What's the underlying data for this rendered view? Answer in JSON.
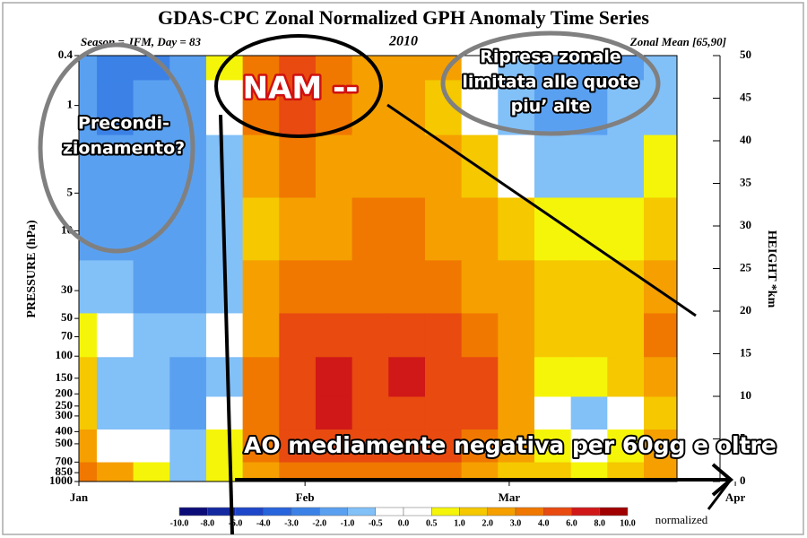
{
  "chart_data": {
    "type": "contour",
    "title": "GDAS-CPC Zonal Normalized GPH Anomaly Time Series",
    "subtitle_left": "Season = JFM, Day =  83",
    "subtitle_center": "2010",
    "subtitle_right": "Zonal Mean [65,90]",
    "y_label": "PRESSURE (hPa)",
    "y2_label": "HEIGHT *km",
    "log_y": true,
    "x": [
      1,
      6,
      11,
      16,
      21,
      26,
      31,
      36,
      41,
      46,
      51,
      56,
      61,
      66,
      71,
      76,
      81
    ],
    "xlim": [
      1,
      83
    ],
    "xticks": [
      {
        "value": 1,
        "label": "Jan"
      },
      {
        "value": 32,
        "label": "Feb"
      },
      {
        "value": 60,
        "label": "Mar"
      },
      {
        "value": 91,
        "label": "Apr"
      }
    ],
    "pressures": [
      0.4,
      1,
      3,
      10,
      30,
      70,
      150,
      300,
      500,
      1000
    ],
    "ylim": [
      0.4,
      1000
    ],
    "yticks": [
      0.4,
      1,
      5,
      10,
      30,
      50,
      70,
      100,
      150,
      200,
      250,
      300,
      400,
      500,
      700,
      850,
      1000
    ],
    "y2lim": [
      0,
      50
    ],
    "y2ticks": [
      0,
      5,
      10,
      15,
      20,
      25,
      30,
      35,
      40,
      45,
      50
    ],
    "z": [
      [
        -2,
        -3,
        -2.5,
        -2,
        0.7,
        3.5,
        4.5,
        3,
        2,
        2,
        2,
        -0.3,
        -1,
        -2,
        -2,
        -1.5,
        -0.7
      ],
      [
        -2,
        -2.5,
        -2,
        -1.5,
        0.3,
        3,
        4,
        3,
        2,
        2,
        1.5,
        0.3,
        -1,
        -1.5,
        -1.5,
        -1,
        -0.7
      ],
      [
        -1.5,
        -2,
        -1.5,
        -1.5,
        -0.7,
        2,
        3,
        2,
        2,
        2,
        2,
        1.5,
        0.3,
        -0.7,
        -1,
        -0.7,
        0.7
      ],
      [
        -1.5,
        -1.5,
        -1.5,
        -1.5,
        -0.7,
        1.5,
        2,
        2.5,
        3,
        3,
        2.5,
        2,
        1.5,
        0.7,
        0.7,
        0.7,
        1.5
      ],
      [
        -0.7,
        -1,
        -1.5,
        -1.2,
        -0.7,
        2,
        3,
        3.5,
        3.5,
        3.5,
        3,
        2.5,
        2,
        1.5,
        1.5,
        1.5,
        2
      ],
      [
        0.7,
        -0.3,
        -1,
        -1,
        -0.3,
        2.5,
        4,
        4.5,
        4,
        4.5,
        4,
        3,
        2,
        1.5,
        1.5,
        1.5,
        3
      ],
      [
        1.5,
        -1,
        -0.7,
        -1.2,
        -0.7,
        3,
        5,
        6.5,
        4.5,
        6,
        5,
        4,
        2.5,
        0.7,
        0.7,
        1,
        2
      ],
      [
        1.5,
        -1,
        -0.7,
        -1.2,
        -0.3,
        3,
        5,
        6,
        4.5,
        5,
        5,
        4,
        2.5,
        0.3,
        -0.7,
        0.3,
        1.5
      ],
      [
        2.5,
        0.3,
        -0.3,
        -0.7,
        0.7,
        3,
        4,
        4.5,
        4,
        4,
        4,
        3,
        2,
        0.7,
        -0.3,
        0.7,
        2
      ],
      [
        3.5,
        2,
        0.7,
        -0.7,
        0.7,
        2.5,
        3,
        3.5,
        3,
        3,
        3,
        2,
        1.5,
        1,
        0.7,
        1.5,
        2
      ]
    ],
    "colorbar": {
      "label": "normalized",
      "levels": [
        {
          "value": -10,
          "label": "-10.0"
        },
        {
          "value": -8,
          "label": "-8.0"
        },
        {
          "value": -6,
          "label": "-6.0"
        },
        {
          "value": -4,
          "label": "-4.0"
        },
        {
          "value": -3,
          "label": "-3.0"
        },
        {
          "value": -2,
          "label": "-2.0"
        },
        {
          "value": -1,
          "label": "-1.0"
        },
        -0.5,
        {
          "value": 0,
          "label": "0.0"
        },
        0.5,
        {
          "value": 1,
          "label": "1.0"
        },
        {
          "value": 2,
          "label": "2.0"
        },
        {
          "value": 3,
          "label": "3.0"
        },
        {
          "value": 4,
          "label": "4.0"
        },
        {
          "value": 6,
          "label": "6.0"
        },
        {
          "value": 8,
          "label": "8.0"
        },
        {
          "value": 10,
          "label": "10.0"
        }
      ],
      "colors": [
        "#0c0c78",
        "#1428a0",
        "#1e46c8",
        "#2864dc",
        "#3c82e6",
        "#5aa0f0",
        "#82c0f8",
        "#ffffff",
        "#ffffff",
        "#f5f50a",
        "#f5c800",
        "#f5a000",
        "#f07800",
        "#e84a10",
        "#d01818",
        "#a00000"
      ]
    }
  },
  "annotations": {
    "precondizionamento": [
      "Precondi-",
      "zionamento?"
    ],
    "nam": "NAM --",
    "ripresa": [
      "Ripresa zonale",
      "limitata alle quote",
      "piu’ alte"
    ],
    "ao": "AO mediamente negativa per 60gg e oltre"
  }
}
